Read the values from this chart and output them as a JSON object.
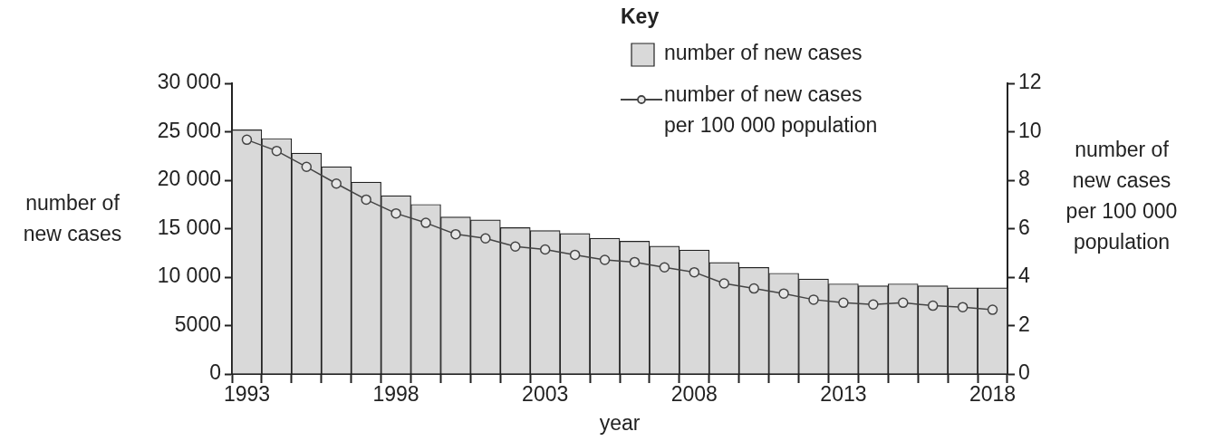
{
  "chart_data": {
    "type": "bar",
    "xlabel": "year",
    "ylabel": "number of\nnew cases",
    "y2label": "number of\nnew cases\nper 100 000\npopulation",
    "legend_title": "Key",
    "legend": "top right",
    "grid": false,
    "categories": [
      "1993",
      null,
      null,
      null,
      null,
      "1998",
      null,
      null,
      null,
      null,
      "2003",
      null,
      null,
      null,
      null,
      "2008",
      null,
      null,
      null,
      null,
      "2013",
      null,
      null,
      null,
      null,
      "2018"
    ],
    "series": [
      {
        "name": "number of new cases",
        "color": "#d9d9d9",
        "values": [
          25200,
          24300,
          22800,
          21400,
          19800,
          18400,
          17500,
          16200,
          15900,
          15100,
          14800,
          14500,
          14000,
          13700,
          13200,
          12800,
          11500,
          11000,
          10400,
          9800,
          9300,
          9100,
          9300,
          9100,
          8900,
          8900
        ]
      },
      {
        "name": "number of new cases\nper 100 000 population",
        "type": "line",
        "axis": "y2",
        "marker": "circle",
        "color": "#444444",
        "values": [
          9.67,
          9.21,
          8.55,
          7.86,
          7.2,
          6.63,
          6.24,
          5.77,
          5.6,
          5.26,
          5.14,
          4.92,
          4.71,
          4.62,
          4.4,
          4.2,
          3.74,
          3.53,
          3.32,
          3.07,
          2.94,
          2.87,
          2.94,
          2.82,
          2.76,
          2.65
        ]
      }
    ],
    "ylim": [
      0,
      30000
    ],
    "yticks": [
      0,
      5000,
      {
        "value": 10000,
        "label": "10 000"
      },
      {
        "value": 15000,
        "label": "15 000"
      },
      {
        "value": 20000,
        "label": "20 000"
      },
      {
        "value": 25000,
        "label": "25 000"
      },
      {
        "value": 30000,
        "label": "30 000"
      }
    ],
    "y2lim": [
      0,
      12
    ],
    "y2ticks": [
      0,
      2,
      4,
      6,
      8,
      10,
      12
    ]
  }
}
